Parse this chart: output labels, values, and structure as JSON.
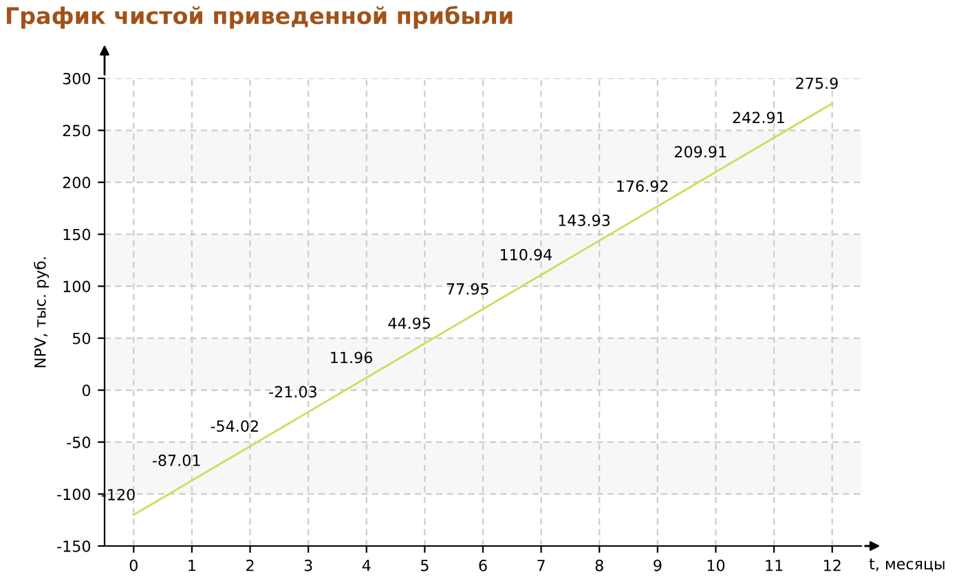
{
  "chart_data": {
    "type": "line",
    "title": "График чистой приведенной прибыли",
    "xlabel": "t, месяцы",
    "ylabel": "NPV, тыс. руб.",
    "x": [
      0,
      1,
      2,
      3,
      4,
      5,
      6,
      7,
      8,
      9,
      10,
      11,
      12
    ],
    "series": [
      {
        "color": "#c5e05a",
        "values": [
          -120,
          -87.01,
          -54.02,
          -21.03,
          11.96,
          44.95,
          77.95,
          110.94,
          143.93,
          176.92,
          209.91,
          242.91,
          275.9
        ]
      }
    ],
    "xlim": [
      -0.5,
      12.5
    ],
    "xticks": [
      0,
      1,
      2,
      3,
      4,
      5,
      6,
      7,
      8,
      9,
      10,
      11,
      12
    ],
    "ylim": [
      -150,
      300
    ],
    "yticks": [
      -150,
      -100,
      -50,
      0,
      50,
      100,
      150,
      200,
      250,
      300
    ],
    "bands": [
      {
        "axis": "y",
        "from": -100,
        "to": -50,
        "color": "#f7f7f7"
      },
      {
        "axis": "y",
        "from": 0,
        "to": 50,
        "color": "#f7f7f7"
      },
      {
        "axis": "y",
        "from": 100,
        "to": 150,
        "color": "#f7f7f7"
      },
      {
        "axis": "y",
        "from": 200,
        "to": 250,
        "color": "#f7f7f7"
      }
    ],
    "grid": true,
    "marker": "none",
    "line_style": "solid",
    "data_labels": true,
    "legend": false
  }
}
